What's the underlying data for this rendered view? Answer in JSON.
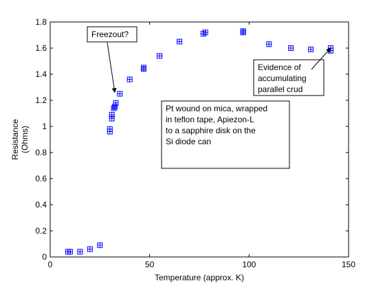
{
  "chart_data": {
    "type": "scatter",
    "xlabel": "Temperature (approx. K)",
    "ylabel_lines": [
      "Resistance",
      "(Ohms)"
    ],
    "xlim": [
      0,
      150
    ],
    "ylim": [
      0,
      1.8
    ],
    "xticks": [
      0,
      50,
      100,
      150
    ],
    "yticks": [
      0,
      0.2,
      0.4,
      0.6,
      0.8,
      1,
      1.2,
      1.4,
      1.6,
      1.8
    ],
    "grid": false,
    "marker_color": "#0000ff",
    "marker_style": "boxed-plus",
    "series": [
      {
        "x": [
          9,
          10,
          15,
          20,
          25,
          30,
          30,
          31,
          31,
          32,
          32.5,
          33,
          35,
          40,
          47,
          47,
          55,
          65,
          77,
          78,
          97,
          97,
          110,
          121,
          131,
          141,
          141
        ],
        "y": [
          0.04,
          0.04,
          0.04,
          0.06,
          0.09,
          0.96,
          0.98,
          1.06,
          1.09,
          1.14,
          1.15,
          1.18,
          1.25,
          1.36,
          1.44,
          1.45,
          1.54,
          1.65,
          1.71,
          1.72,
          1.72,
          1.73,
          1.63,
          1.6,
          1.59,
          1.58,
          1.6
        ]
      }
    ],
    "annotations": [
      {
        "id": "freezout",
        "lines": [
          "Freezout?"
        ],
        "arrow_to": [
          32.5,
          1.26
        ]
      },
      {
        "id": "parallel-crud",
        "lines": [
          "Evidence of",
          "accumulating",
          "parallel crud"
        ],
        "arrow_to": [
          141,
          1.6
        ]
      },
      {
        "id": "pt-wound-note",
        "lines": [
          "Pt wound on mica, wrapped",
          "in teflon tape, Apiezon-L",
          "to a sapphire disk on the",
          "Si diode can"
        ]
      }
    ]
  }
}
